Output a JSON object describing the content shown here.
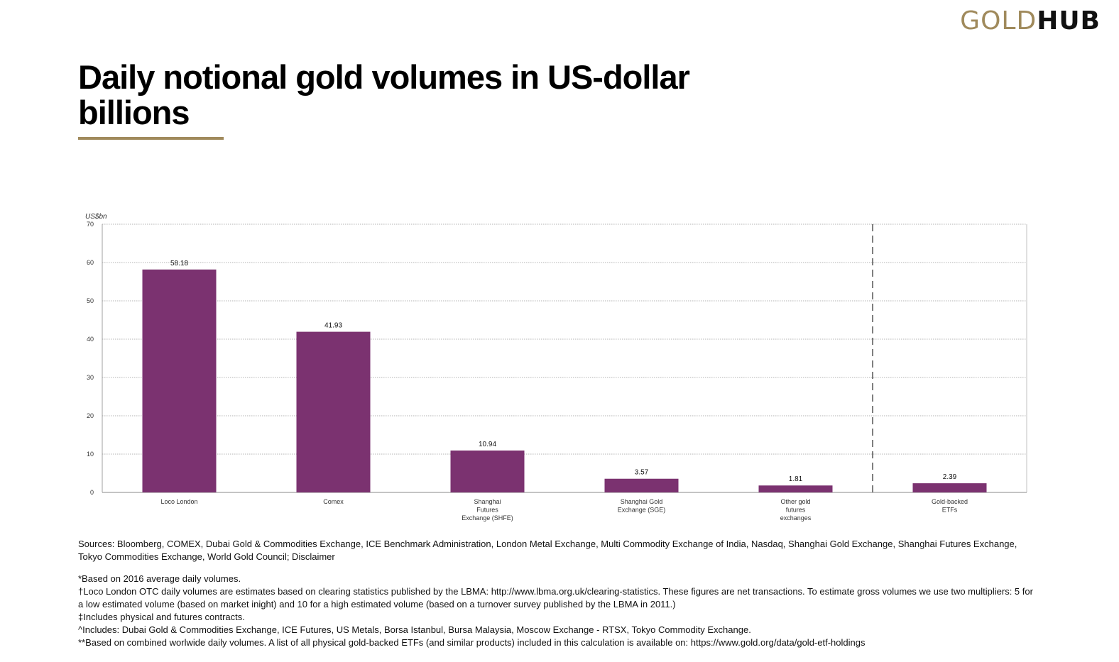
{
  "logo": {
    "gold": "GOLD",
    "hub": "HUB"
  },
  "title": "Daily notional gold volumes in US-dollar billions",
  "chart_data": {
    "type": "bar",
    "ylabel": "US$bn",
    "ylim": [
      0,
      70
    ],
    "yticks": [
      0,
      10,
      20,
      30,
      40,
      50,
      60,
      70
    ],
    "grid": true,
    "categories": [
      [
        "Loco London"
      ],
      [
        "Comex"
      ],
      [
        "Shanghai",
        "Futures",
        "Exchange (SHFE)"
      ],
      [
        "Shanghai Gold",
        "Exchange (SGE)"
      ],
      [
        "Other gold",
        "futures",
        "exchanges"
      ],
      [
        "Gold-backed",
        "ETFs"
      ]
    ],
    "values": [
      58.18,
      41.93,
      10.94,
      3.57,
      1.81,
      2.39
    ],
    "value_labels": [
      "58.18",
      "41.93",
      "10.94",
      "3.57",
      "1.81",
      "2.39"
    ],
    "bar_color": "#7b3270",
    "separator_after_index": 4
  },
  "notes": {
    "sources": "Sources: Bloomberg, COMEX, Dubai Gold & Commodities Exchange, ICE Benchmark Administration, London Metal Exchange, Multi Commodity Exchange of India, Nasdaq, Shanghai Gold Exchange, Shanghai Futures Exchange, Tokyo Commodities Exchange, World Gold Council; Disclaimer",
    "footnotes": [
      "*Based on 2016 average daily volumes.",
      "†Loco London OTC daily volumes are estimates based on clearing statistics published by the LBMA: http://www.lbma.org.uk/clearing-statistics. These figures are net transactions. To estimate gross volumes we use two multipliers: 5 for a low estimated volume (based on market inight) and 10 for a high estimated volume (based on a turnover survey published by the LBMA in 2011.)",
      "‡Includes physical and futures contracts.",
      "^Includes: Dubai Gold & Commodities Exchange, ICE Futures, US Metals, Borsa Istanbul, Bursa Malaysia, Moscow Exchange - RTSX, Tokyo Commodity Exchange.",
      "**Based on combined worlwide daily volumes. A list of all physical gold-backed ETFs (and similar products) included in this calculation is available on: https://www.gold.org/data/gold-etf-holdings"
    ]
  }
}
